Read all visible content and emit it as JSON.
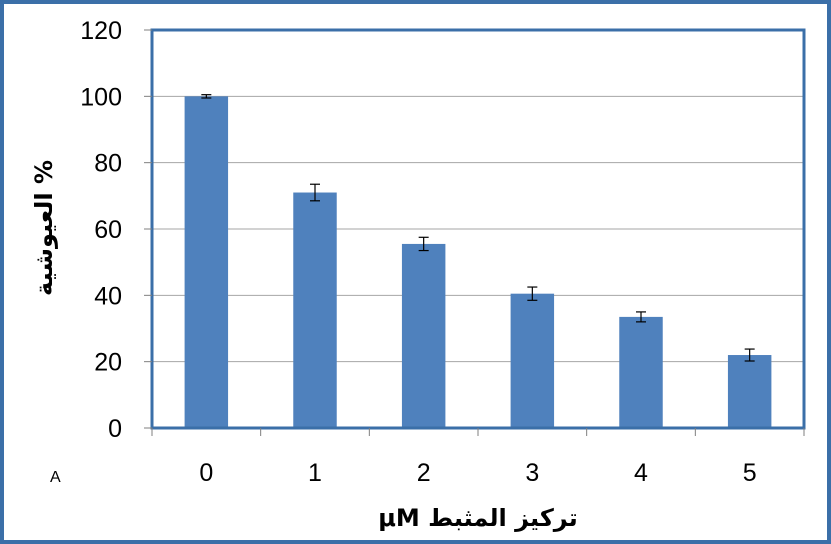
{
  "chart_data": {
    "type": "bar",
    "panel_label": "A",
    "categories": [
      "0",
      "1",
      "2",
      "3",
      "4",
      "5"
    ],
    "values": [
      100,
      71,
      55.5,
      40.5,
      33.5,
      22
    ],
    "errors": [
      0.5,
      2.5,
      2,
      2,
      1.5,
      1.8
    ],
    "xlabel": "تركيز المثبط μM",
    "ylabel": "% العيوشية",
    "ylim": [
      0,
      120
    ],
    "yticks": [
      "0",
      "20",
      "40",
      "60",
      "80",
      "100",
      "120"
    ],
    "grid": true,
    "legend": "none",
    "colors": {
      "bar": "#4f81bd",
      "plot_border": "#3b6fa8",
      "grid": "#a6a6a6",
      "frame": "#3b6fa8"
    }
  }
}
